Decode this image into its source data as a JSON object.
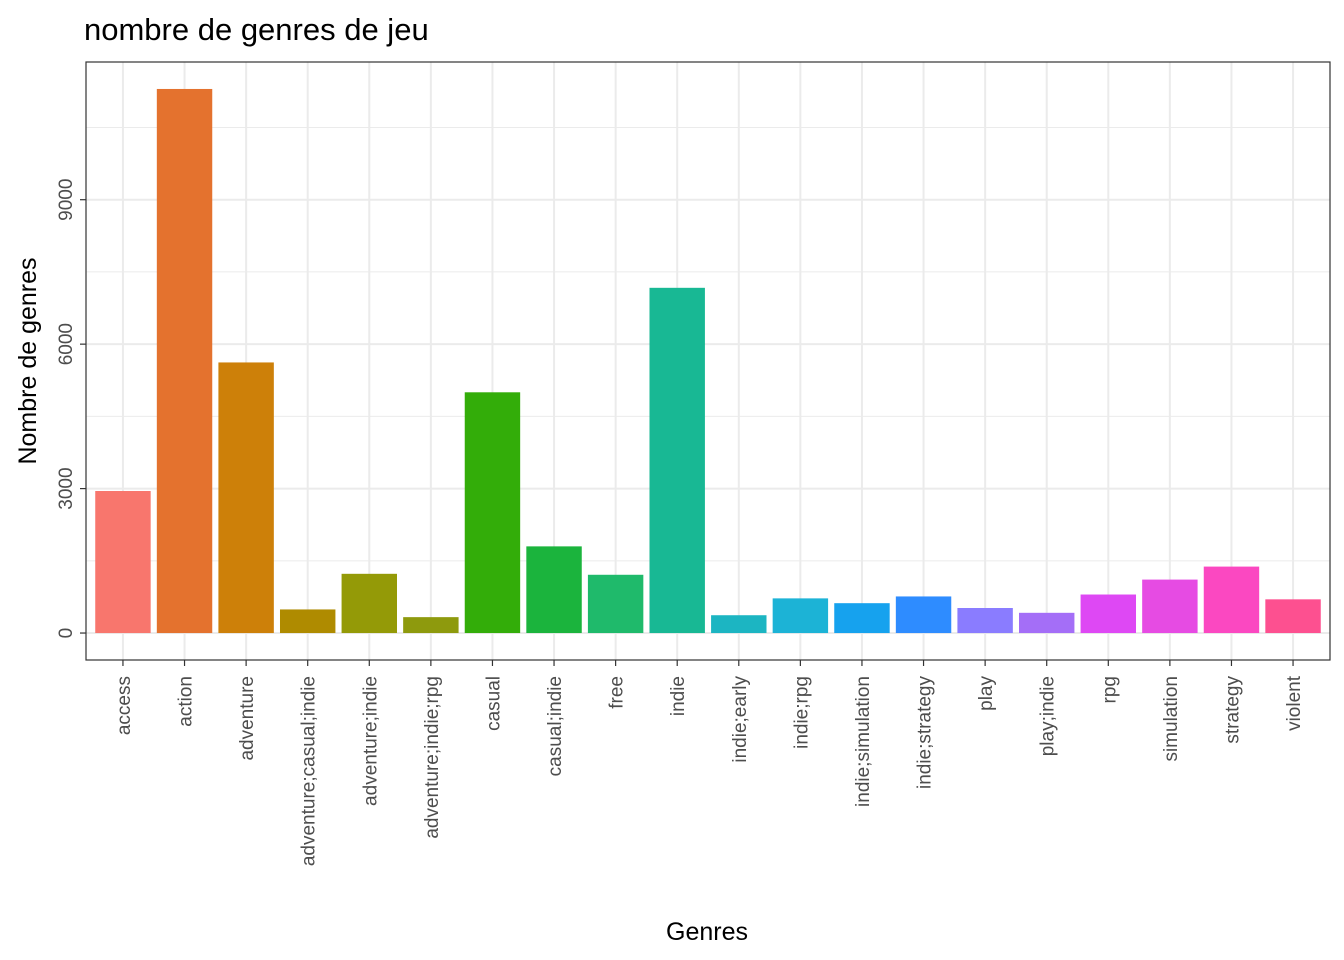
{
  "chart_data": {
    "type": "bar",
    "title": "nombre de genres de jeu",
    "xlabel": "Genres",
    "ylabel": "Nombre de genres",
    "categories": [
      "access",
      "action",
      "adventure",
      "adventure;casual;indie",
      "adventure;indie",
      "adventure;indie;rpg",
      "casual",
      "casual;indie",
      "free",
      "indie",
      "indie;early",
      "indie;rpg",
      "indie;simulation",
      "indie;strategy",
      "play",
      "play;indie",
      "rpg",
      "simulation",
      "strategy",
      "violent"
    ],
    "values": [
      2950,
      11300,
      5620,
      490,
      1230,
      330,
      5000,
      1800,
      1210,
      7170,
      370,
      720,
      620,
      760,
      520,
      420,
      800,
      1110,
      1380,
      700
    ],
    "colors": [
      "#F8766D",
      "#E58700",
      "#C99800",
      "#A3A500",
      "#6BB100",
      "#00BA38",
      "#00BF7D",
      "#00C0AF",
      "#00BCD8",
      "#00B0F6",
      "#619CFF",
      "#B983FF",
      "#E76BF3",
      "#FD61D1",
      "#FF67A4",
      "#F8766D",
      "#E58700",
      "#C99800",
      "#A3A500",
      "#6BB100"
    ],
    "bar_colors": [
      "#F8766D",
      "#E4722E",
      "#CD8009",
      "#AF8B00",
      "#949A07",
      "#8E9A0D",
      "#33AD09",
      "#1BB43D",
      "#1FBA6B",
      "#18B894",
      "#1CB5C2",
      "#1CB3D6",
      "#16A2EE",
      "#2E8CFF",
      "#8A7CFF",
      "#A46EF7",
      "#DE48F4",
      "#E64BE3",
      "#FB48C1",
      "#FD5090"
    ],
    "yticks": [
      0,
      3000,
      6000,
      9000
    ],
    "ylim": [
      -560,
      11860
    ],
    "grid": true,
    "legend": "none"
  }
}
